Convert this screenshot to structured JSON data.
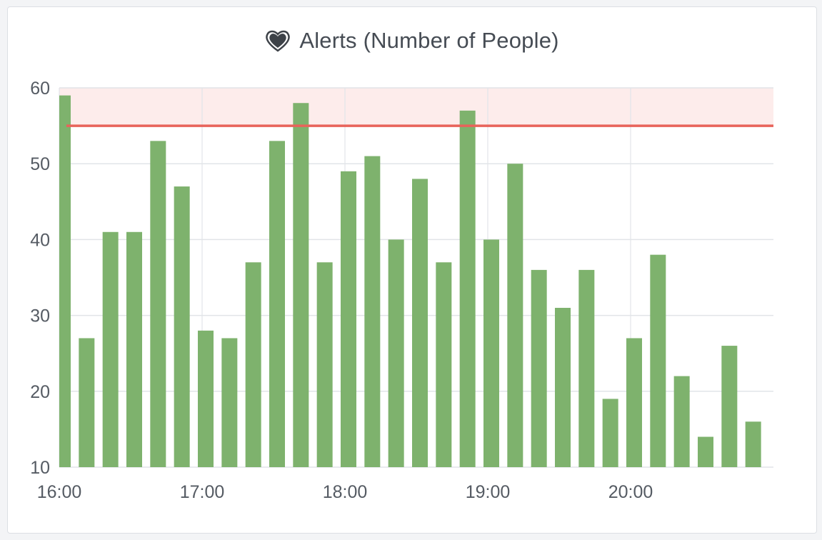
{
  "panel": {
    "title": "Alerts (Number of People)",
    "icon": "heart-icon"
  },
  "colors": {
    "bar": "#7eb26d",
    "threshold_line": "#e8635a",
    "threshold_fill": "#fdeceb",
    "grid": "#e2e4e8",
    "text": "#555b63"
  },
  "chart_data": {
    "type": "bar",
    "title": "Alerts (Number of People)",
    "xlabel": "",
    "ylabel": "",
    "ylim": [
      10,
      60
    ],
    "yticks": [
      10,
      20,
      30,
      40,
      50,
      60
    ],
    "xticks": [
      "16:00",
      "17:00",
      "18:00",
      "19:00",
      "20:00"
    ],
    "x_interval_minutes": 10,
    "x_start": "16:00",
    "values": [
      59,
      27,
      41,
      41,
      53,
      47,
      28,
      27,
      37,
      53,
      58,
      37,
      49,
      51,
      40,
      48,
      37,
      57,
      40,
      50,
      36,
      31,
      36,
      19,
      27,
      38,
      22,
      14,
      26,
      16
    ],
    "threshold": {
      "value": 55,
      "region": [
        55,
        60
      ]
    },
    "grid": true,
    "legend": "none"
  }
}
